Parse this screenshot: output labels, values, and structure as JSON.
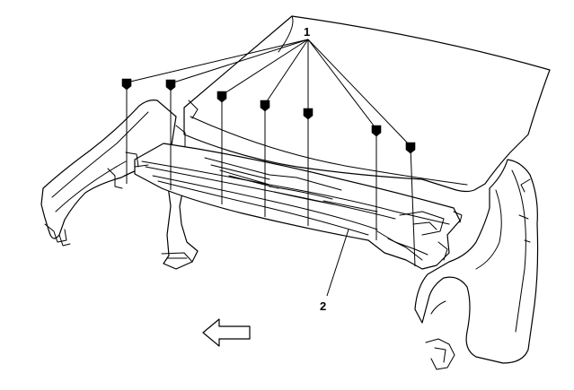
{
  "callouts": {
    "fastener": "1",
    "cowl_panel": "2"
  },
  "icons": {
    "direction": "front-direction-arrow-icon"
  }
}
